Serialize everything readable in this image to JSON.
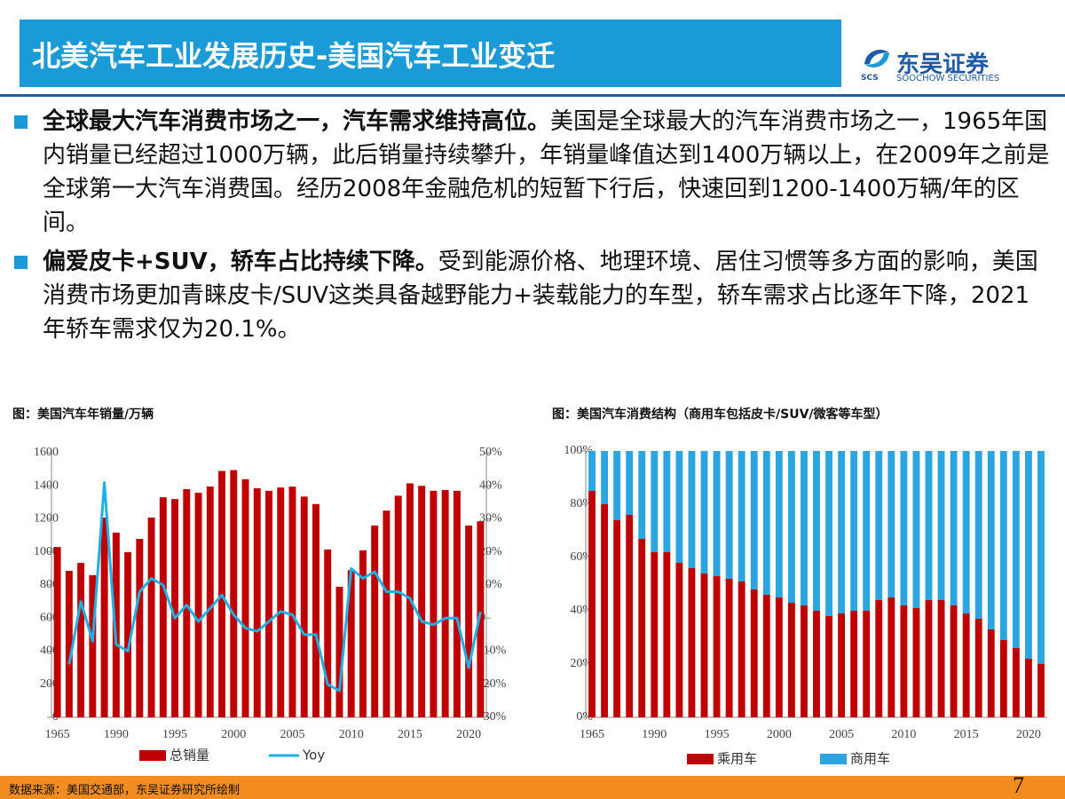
{
  "header": {
    "title": "北美汽车工业发展历史-美国汽车工业变迁",
    "logo_cn": "东吴证券",
    "logo_en": "SOOCHOW SECURITIES",
    "logo_mark": "SCS"
  },
  "bullets": [
    {
      "bold": "全球最大汽车消费市场之一，汽车需求维持高位。",
      "text": "美国是全球最大的汽车消费市场之一，1965年国内销量已经超过1000万辆，此后销量持续攀升，年销量峰值达到1400万辆以上，在2009年之前是全球第一大汽车消费国。经历2008年金融危机的短暂下行后，快速回到1200-1400万辆/年的区间。"
    },
    {
      "bold": "偏爱皮卡+SUV，轿车占比持续下降。",
      "text": "受到能源价格、地理环境、居住习惯等多方面的影响，美国消费市场更加青睐皮卡/SUV这类具备越野能力+装载能力的车型，轿车需求占比逐年下降，2021年轿车需求仅为20.1%。"
    }
  ],
  "chart_data": [
    {
      "type": "bar_line",
      "title": "图：美国汽车年销量/万辆",
      "categories": [
        "1965",
        null,
        null,
        null,
        null,
        "1990",
        null,
        null,
        null,
        null,
        "1995",
        null,
        null,
        null,
        null,
        "2000",
        null,
        null,
        null,
        null,
        "2005",
        null,
        null,
        null,
        null,
        "2010",
        null,
        null,
        null,
        null,
        "2015",
        null,
        null,
        null,
        null,
        "2020",
        null
      ],
      "series": [
        {
          "name": "总销量",
          "color": "#c00000",
          "values": [
            1030,
            886,
            934,
            860,
            1208,
            1117,
            999,
            1079,
            1208,
            1331,
            1320,
            1380,
            1358,
            1396,
            1490,
            1495,
            1440,
            1385,
            1370,
            1390,
            1395,
            1335,
            1290,
            1015,
            790,
            890,
            1010,
            1160,
            1250,
            1340,
            1415,
            1400,
            1370,
            1375,
            1370,
            1160,
            1185
          ]
        },
        {
          "name": "Yoy",
          "color": "#1fb0e6",
          "axis": "y2",
          "values": [
            null,
            -14,
            5,
            -7,
            41,
            -8,
            -10,
            8,
            12,
            10,
            0,
            4,
            -1,
            3,
            7,
            1,
            -3,
            -4,
            -1,
            2,
            1,
            -5,
            -5,
            -20,
            -22,
            15,
            12,
            14,
            8,
            8,
            6,
            -1,
            -2,
            0,
            0,
            -15,
            2
          ]
        }
      ],
      "ylim": [
        0,
        1600
      ],
      "yticks": [
        0,
        200,
        400,
        600,
        800,
        1000,
        1200,
        1400,
        1600
      ],
      "y2lim": [
        -30,
        50
      ],
      "y2ticks": [
        {
          "value": -30,
          "label": "-30%"
        },
        {
          "value": -20,
          "label": "-20%"
        },
        {
          "value": -10,
          "label": "-10%"
        },
        0,
        {
          "value": 10,
          "label": "10%"
        },
        {
          "value": 20,
          "label": "20%"
        },
        {
          "value": 30,
          "label": "30%"
        },
        {
          "value": 40,
          "label": "40%"
        },
        {
          "value": 50,
          "label": "50%"
        }
      ],
      "legend": "bottom"
    },
    {
      "type": "stacked_bar",
      "title": "图：美国汽车消费结构（商用车包括皮卡/SUV/微客等车型）",
      "categories": [
        "1965",
        null,
        null,
        null,
        null,
        "1990",
        null,
        null,
        null,
        null,
        "1995",
        null,
        null,
        null,
        null,
        "2000",
        null,
        null,
        null,
        null,
        "2005",
        null,
        null,
        null,
        null,
        "2010",
        null,
        null,
        null,
        null,
        "2015",
        null,
        null,
        null,
        null,
        "2020",
        null
      ],
      "series": [
        {
          "name": "乘用车",
          "color": "#c00000",
          "values": [
            85,
            80,
            74,
            76,
            67,
            62,
            62,
            58,
            56,
            54,
            53,
            52,
            51,
            48,
            46,
            45,
            43,
            42,
            40,
            38,
            39,
            40,
            40,
            44,
            45,
            42,
            41,
            44,
            44,
            42,
            39,
            37,
            33,
            29,
            26,
            22,
            20.1
          ]
        },
        {
          "name": "商用车",
          "color": "#2ba5e0",
          "values": [
            15,
            20,
            26,
            24,
            33,
            38,
            38,
            42,
            44,
            46,
            47,
            48,
            49,
            52,
            54,
            55,
            57,
            58,
            60,
            62,
            61,
            60,
            60,
            56,
            55,
            58,
            59,
            56,
            56,
            58,
            61,
            63,
            67,
            71,
            74,
            78,
            79.9
          ]
        }
      ],
      "ylim": [
        0,
        100
      ],
      "yticks": [
        {
          "value": 0,
          "label": "0%"
        },
        {
          "value": 20,
          "label": "20%"
        },
        {
          "value": 40,
          "label": "40%"
        },
        {
          "value": 60,
          "label": "60%"
        },
        {
          "value": 80,
          "label": "80%"
        },
        {
          "value": 100,
          "label": "100%"
        }
      ],
      "legend": "bottom"
    }
  ],
  "footer": {
    "source": "数据来源：美国交通部，东吴证券研究所绘制",
    "page": "7"
  }
}
